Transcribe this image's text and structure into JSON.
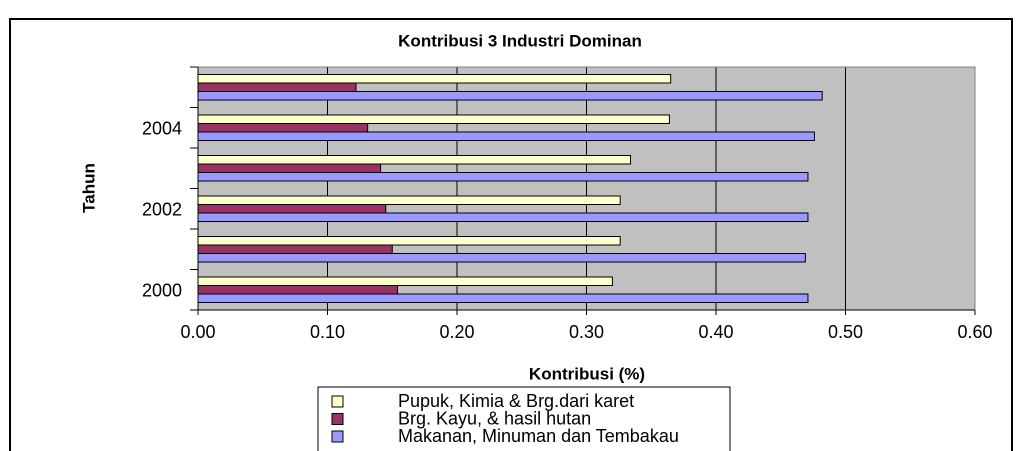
{
  "chart_data": {
    "type": "bar",
    "orientation": "horizontal",
    "title": "Kontribusi 3 Industri Dominan",
    "x_label": "Kontribusi (%)",
    "y_label": "Tahun",
    "categories": [
      "2000",
      null,
      "2002",
      null,
      "2004",
      null
    ],
    "series": [
      {
        "name": "Pupuk, Kimia & Brg.dari karet",
        "color": "#ffffcc",
        "values": [
          0.32,
          0.326,
          0.326,
          0.334,
          0.364,
          0.365
        ]
      },
      {
        "name": "Brg. Kayu, & hasil hutan",
        "color": "#993366",
        "values": [
          0.154,
          0.15,
          0.145,
          0.141,
          0.131,
          0.122
        ]
      },
      {
        "name": "Makanan, Minuman dan Tembakau",
        "color": "#9999ff",
        "values": [
          0.471,
          0.469,
          0.471,
          0.471,
          0.476,
          0.482
        ]
      }
    ],
    "xlim": [
      0,
      0.6
    ],
    "xticks": [
      {
        "value": 0,
        "label": "0.00"
      },
      {
        "value": 0.1,
        "label": "0.10"
      },
      {
        "value": 0.2,
        "label": "0.20"
      },
      {
        "value": 0.3,
        "label": "0.30"
      },
      {
        "value": 0.4,
        "label": "0.40"
      },
      {
        "value": 0.5,
        "label": "0.50"
      },
      {
        "value": 0.6,
        "label": "0.60"
      }
    ],
    "grid": true,
    "legend": "bottom",
    "plot_background": "#c0c0c0"
  }
}
